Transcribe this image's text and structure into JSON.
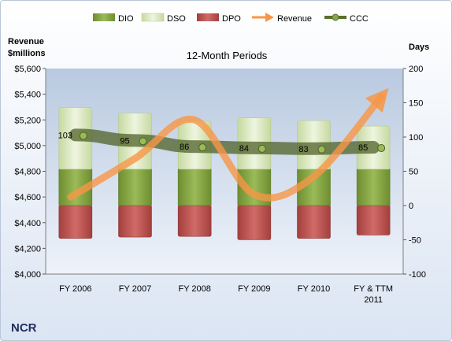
{
  "chart_data": {
    "type": "bar",
    "title": "12-Month Periods",
    "company": "NCR",
    "y_left_label_line1": "Revenue",
    "y_left_label_line2": "$millions",
    "y_right_label": "Days",
    "categories": [
      [
        "FY 2006"
      ],
      [
        "FY 2007"
      ],
      [
        "FY 2008"
      ],
      [
        "FY 2009"
      ],
      [
        "FY 2010"
      ],
      [
        "FY & TTM",
        "2011"
      ]
    ],
    "y_left": {
      "min": 4000,
      "max": 5600,
      "step": 200,
      "ticks": [
        "$4,000",
        "$4,200",
        "$4,400",
        "$4,600",
        "$4,800",
        "$5,000",
        "$5,200",
        "$5,400",
        "$5,600"
      ]
    },
    "y_right": {
      "min": -100,
      "max": 200,
      "step": 50,
      "ticks": [
        "-100",
        "-50",
        "0",
        "50",
        "100",
        "150",
        "200"
      ]
    },
    "series": [
      {
        "name": "DIO",
        "axis": "right",
        "kind": "stacked-bar",
        "values": [
          53,
          53,
          53,
          53,
          53,
          53
        ],
        "color": "#7a9a3a"
      },
      {
        "name": "DSO",
        "axis": "right",
        "kind": "stacked-bar",
        "values": [
          90,
          82,
          70,
          75,
          71,
          63
        ],
        "color": "#d7e4bd"
      },
      {
        "name": "DPO",
        "axis": "right",
        "kind": "stacked-bar-negative",
        "values": [
          -48,
          -46,
          -45,
          -50,
          -48,
          -43
        ],
        "color": "#c0504d"
      },
      {
        "name": "Revenue",
        "axis": "left",
        "kind": "arrow-line",
        "values": [
          4600,
          4900,
          5200,
          4620,
          4760,
          5380
        ],
        "color": "#f79646"
      },
      {
        "name": "CCC",
        "axis": "right",
        "kind": "line",
        "values": [
          103,
          95,
          86,
          84,
          83,
          85
        ],
        "labels": [
          "103",
          "95",
          "86",
          "84",
          "83",
          "85"
        ],
        "color": "#5b6e2e"
      }
    ],
    "legend": {
      "position": "top",
      "items": [
        "DIO",
        "DSO",
        "DPO",
        "Revenue",
        "CCC"
      ]
    },
    "grid": false
  }
}
